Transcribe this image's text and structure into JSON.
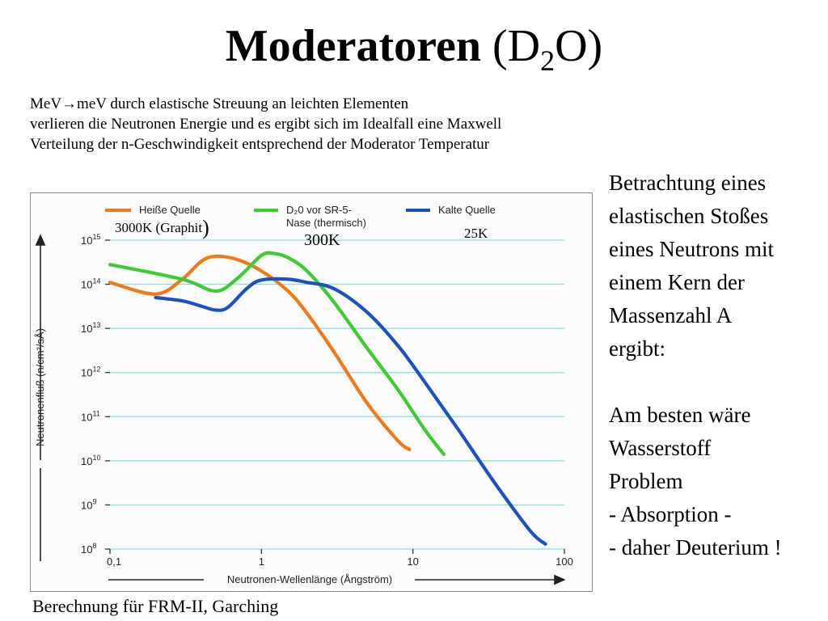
{
  "slide": {
    "title_main": "Moderatoren",
    "title_formula_pre": "(D",
    "title_formula_sub": "2",
    "title_formula_post": "O)",
    "intro_lines": [
      "MeV→meV  durch elastische Streuung an leichten Elementen",
      "verlieren die Neutronen Energie und es ergibt sich im Idealfall eine Maxwell",
      "Verteilung der n-Geschwindigkeit  entsprechend der Moderator Temperatur"
    ],
    "side_lines_1": [
      "Betrachtung eines",
      "elastischen Stoßes",
      "eines Neutrons mit",
      "einem Kern der",
      "Massenzahl A",
      "ergibt:"
    ],
    "side_lines_2": [
      "Am besten wäre",
      "Wasserstoff",
      "Problem",
      "- Absorption -",
      "- daher Deuterium !"
    ],
    "caption": "Berechnung für FRM-II, Garching",
    "annotations": {
      "hot_pre": "3000K (Graphit",
      "hot_paren": ")",
      "thermal": "300K",
      "cold": "25K"
    }
  },
  "chart_data": {
    "type": "line",
    "xlabel": "Neutronen-Wellenlänge (Ångström)",
    "ylabel": "Neutronenfluß (n/cm²/sÅ)",
    "x_scale": "log",
    "y_scale": "log",
    "xlim": [
      0.1,
      100
    ],
    "ylim": [
      100000000.0,
      1000000000000000.0
    ],
    "x_ticks": [
      {
        "value": 0.1,
        "label": "0,1"
      },
      {
        "value": 1,
        "label": "1"
      },
      {
        "value": 10,
        "label": "10"
      },
      {
        "value": 100,
        "label": "100"
      }
    ],
    "y_ticks": [
      {
        "value": 1000000000000000.0,
        "base": "10",
        "exp": "15"
      },
      {
        "value": 100000000000000.0,
        "base": "10",
        "exp": "14"
      },
      {
        "value": 10000000000000.0,
        "base": "10",
        "exp": "13"
      },
      {
        "value": 1000000000000.0,
        "base": "10",
        "exp": "12"
      },
      {
        "value": 100000000000.0,
        "base": "10",
        "exp": "11"
      },
      {
        "value": 10000000000.0,
        "base": "10",
        "exp": "10"
      },
      {
        "value": 1000000000.0,
        "base": "10",
        "exp": "9"
      },
      {
        "value": 100000000.0,
        "base": "10",
        "exp": "8"
      }
    ],
    "grid": true,
    "legend": "top",
    "series": [
      {
        "name": "Heiße Quelle",
        "color": "#f07a18",
        "x": [
          0.1,
          0.2,
          0.3,
          0.4,
          0.5,
          0.7,
          1.0,
          1.5,
          2.0,
          3.0,
          5.0,
          8.0,
          9.5
        ],
        "y": [
          110000000000000.0,
          60000000000000.0,
          130000000000000.0,
          330000000000000.0,
          430000000000000.0,
          360000000000000.0,
          200000000000000.0,
          70000000000000.0,
          22000000000000.0,
          3000000000000.0,
          200000000000.0,
          28000000000.0,
          18000000000.0
        ]
      },
      {
        "name": "D₂0 vor SR-5-",
        "name_line2": "Nase (thermisch)",
        "color": "#3ccc30",
        "x": [
          0.1,
          0.3,
          0.5,
          0.7,
          1.0,
          1.2,
          1.5,
          2.0,
          3.0,
          5.0,
          8.0,
          12.0,
          16.0
        ],
        "y": [
          280000000000000.0,
          130000000000000.0,
          70000000000000.0,
          140000000000000.0,
          450000000000000.0,
          500000000000000.0,
          400000000000000.0,
          200000000000000.0,
          40000000000000.0,
          3500000000000.0,
          400000000000.0,
          50000000000.0,
          14000000000.0
        ]
      },
      {
        "name": "Kalte Quelle",
        "color": "#1a52c4",
        "x": [
          0.2,
          0.3,
          0.4,
          0.5,
          0.6,
          0.8,
          1.0,
          1.5,
          2.0,
          3.0,
          5.0,
          8.0,
          12.0,
          20.0,
          35.0,
          60.0,
          75.0
        ],
        "y": [
          50000000000000.0,
          42000000000000.0,
          32000000000000.0,
          26000000000000.0,
          30000000000000.0,
          80000000000000.0,
          125000000000000.0,
          130000000000000.0,
          110000000000000.0,
          80000000000000.0,
          23000000000000.0,
          4000000000000.0,
          600000000000.0,
          50000000000.0,
          3000000000.0,
          250000000.0,
          130000000.0
        ]
      }
    ]
  }
}
